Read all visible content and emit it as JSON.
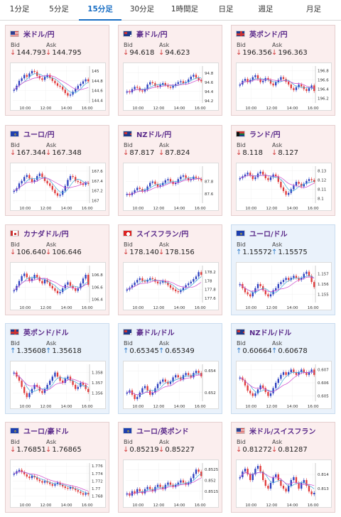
{
  "tabs": [
    {
      "label": "1分足",
      "active": false
    },
    {
      "label": "5分足",
      "active": false
    },
    {
      "label": "15分足",
      "active": true
    },
    {
      "label": "30分足",
      "active": false
    },
    {
      "label": "1時間足",
      "active": false
    },
    {
      "label": "日足",
      "active": false
    },
    {
      "label": "週足",
      "active": false
    },
    {
      "label": "月足",
      "active": false
    }
  ],
  "labels": {
    "bid": "Bid",
    "ask": "Ask"
  },
  "x_ticks": [
    "10:00",
    "12:00",
    "14:00",
    "16:00"
  ],
  "colors": {
    "up": "#2b3fbf",
    "down": "#e03a3a",
    "ma": "#cc44cc",
    "ma2": "#3aa8d8",
    "card_red": "#fbeeee",
    "card_blue": "#eaf2fb"
  },
  "pairs": [
    {
      "name": "米ドル/円",
      "flag": "us-flag-icon",
      "bid": "144.793",
      "ask": "144.795",
      "dir": "down",
      "theme": "red",
      "yticks": [
        "145",
        "144.8",
        "144.6",
        "144.4"
      ],
      "ylim": [
        144.35,
        145.1
      ],
      "series": [
        144.62,
        144.7,
        144.8,
        144.85,
        144.92,
        144.88,
        144.95,
        145.0,
        144.98,
        144.9,
        144.85,
        144.82,
        144.88,
        144.92,
        144.86,
        144.8,
        144.75,
        144.7,
        144.68,
        144.62,
        144.55,
        144.5,
        144.52,
        144.58,
        144.64,
        144.7,
        144.74,
        144.79,
        144.83,
        144.79
      ]
    },
    {
      "name": "豪ドル/円",
      "flag": "au-flag-icon",
      "bid": "94.618",
      "ask": "94.623",
      "dir": "down",
      "theme": "red",
      "yticks": [
        "94.8",
        "94.6",
        "94.4",
        "94.2"
      ],
      "ylim": [
        94.15,
        94.95
      ],
      "series": [
        94.4,
        94.38,
        94.45,
        94.5,
        94.48,
        94.42,
        94.4,
        94.45,
        94.55,
        94.6,
        94.58,
        94.52,
        94.5,
        94.55,
        94.58,
        94.54,
        94.5,
        94.48,
        94.52,
        94.56,
        94.6,
        94.62,
        94.58,
        94.6,
        94.66,
        94.72,
        94.76,
        94.7,
        94.65,
        94.62
      ]
    },
    {
      "name": "英ポンド/円",
      "flag": "gb-flag-icon",
      "bid": "196.356",
      "ask": "196.363",
      "dir": "down",
      "theme": "red",
      "yticks": [
        "196.8",
        "196.6",
        "196.4",
        "196.2"
      ],
      "ylim": [
        196.1,
        196.9
      ],
      "series": [
        196.5,
        196.58,
        196.62,
        196.55,
        196.6,
        196.66,
        196.7,
        196.62,
        196.55,
        196.58,
        196.64,
        196.6,
        196.52,
        196.48,
        196.55,
        196.6,
        196.66,
        196.62,
        196.56,
        196.5,
        196.42,
        196.38,
        196.44,
        196.5,
        196.46,
        196.4,
        196.36,
        196.42,
        196.48,
        196.36
      ]
    },
    {
      "name": "ユーロ/円",
      "flag": "eu-flag-icon",
      "bid": "167.344",
      "ask": "167.348",
      "dir": "down",
      "theme": "red",
      "yticks": [
        "167.6",
        "167.4",
        "167.2",
        "167"
      ],
      "ylim": [
        166.95,
        167.7
      ],
      "series": [
        167.2,
        167.25,
        167.35,
        167.4,
        167.48,
        167.52,
        167.45,
        167.38,
        167.42,
        167.5,
        167.55,
        167.48,
        167.4,
        167.35,
        167.3,
        167.22,
        167.15,
        167.1,
        167.12,
        167.2,
        167.3,
        167.42,
        167.5,
        167.48,
        167.4,
        167.38,
        167.35,
        167.32,
        167.36,
        167.34
      ]
    },
    {
      "name": "NZドル/円",
      "flag": "nz-flag-icon",
      "bid": "87.817",
      "ask": "87.824",
      "dir": "down",
      "theme": "red",
      "yticks": [
        "87.8",
        "87.6"
      ],
      "ylim": [
        87.45,
        88.05
      ],
      "series": [
        87.6,
        87.58,
        87.62,
        87.66,
        87.7,
        87.68,
        87.64,
        87.66,
        87.72,
        87.78,
        87.8,
        87.76,
        87.72,
        87.74,
        87.78,
        87.82,
        87.84,
        87.8,
        87.76,
        87.78,
        87.84,
        87.88,
        87.9,
        87.86,
        87.82,
        87.84,
        87.88,
        87.86,
        87.84,
        87.82
      ]
    },
    {
      "name": "ランド/円",
      "flag": "za-flag-icon",
      "bid": "8.118",
      "ask": "8.127",
      "dir": "down",
      "theme": "red",
      "yticks": [
        "8.13",
        "8.12",
        "8.11",
        "8.1"
      ],
      "ylim": [
        8.095,
        8.135
      ],
      "series": [
        8.122,
        8.124,
        8.126,
        8.128,
        8.125,
        8.121,
        8.123,
        8.127,
        8.129,
        8.126,
        8.122,
        8.12,
        8.123,
        8.126,
        8.124,
        8.118,
        8.112,
        8.108,
        8.104,
        8.106,
        8.11,
        8.114,
        8.118,
        8.116,
        8.113,
        8.116,
        8.119,
        8.121,
        8.12,
        8.118
      ]
    },
    {
      "name": "カナダドル/円",
      "flag": "ca-flag-icon",
      "bid": "106.640",
      "ask": "106.646",
      "dir": "down",
      "theme": "red",
      "yticks": [
        "106.8",
        "106.6",
        "106.4"
      ],
      "ylim": [
        106.35,
        106.95
      ],
      "series": [
        106.55,
        106.62,
        106.7,
        106.78,
        106.82,
        106.76,
        106.7,
        106.74,
        106.8,
        106.76,
        106.7,
        106.66,
        106.72,
        106.68,
        106.62,
        106.58,
        106.54,
        106.5,
        106.52,
        106.58,
        106.64,
        106.68,
        106.62,
        106.58,
        106.54,
        106.58,
        106.66,
        106.74,
        106.8,
        106.64
      ]
    },
    {
      "name": "スイスフラン/円",
      "flag": "ch-flag-icon",
      "bid": "178.140",
      "ask": "178.156",
      "dir": "down",
      "theme": "red",
      "yticks": [
        "178.2",
        "178",
        "177.8",
        "177.6"
      ],
      "ylim": [
        177.5,
        178.35
      ],
      "series": [
        177.8,
        177.84,
        177.9,
        177.96,
        178.02,
        178.06,
        178.0,
        177.98,
        178.02,
        178.06,
        178.04,
        177.98,
        177.94,
        177.96,
        178.0,
        177.96,
        177.9,
        177.84,
        177.8,
        177.76,
        177.74,
        177.78,
        177.84,
        177.9,
        177.94,
        177.98,
        178.04,
        178.1,
        178.2,
        178.14
      ]
    },
    {
      "name": "ユーロ/ドル",
      "flag": "eu-us-flag-icon",
      "bid": "1.15572",
      "ask": "1.15575",
      "dir": "up",
      "theme": "blue",
      "yticks": [
        "1.157",
        "1.156",
        "1.155"
      ],
      "ylim": [
        1.1542,
        1.1578
      ],
      "series": [
        1.156,
        1.1556,
        1.1552,
        1.155,
        1.1548,
        1.1552,
        1.1556,
        1.156,
        1.1558,
        1.1554,
        1.155,
        1.1548,
        1.155,
        1.1554,
        1.1556,
        1.156,
        1.1562,
        1.1564,
        1.1566,
        1.1564,
        1.1566,
        1.1568,
        1.1566,
        1.1564,
        1.1566,
        1.157,
        1.1572,
        1.1568,
        1.1562,
        1.1557
      ]
    },
    {
      "name": "英ポンド/ドル",
      "flag": "gb-us-flag-icon",
      "bid": "1.35608",
      "ask": "1.35618",
      "dir": "up",
      "theme": "blue",
      "yticks": [
        "1.358",
        "1.357",
        "1.356"
      ],
      "ylim": [
        1.3552,
        1.3588
      ],
      "series": [
        1.358,
        1.3576,
        1.3572,
        1.3566,
        1.356,
        1.3556,
        1.356,
        1.3564,
        1.3568,
        1.3566,
        1.3562,
        1.356,
        1.3564,
        1.3568,
        1.3572,
        1.3576,
        1.358,
        1.3576,
        1.3572,
        1.357,
        1.3574,
        1.3576,
        1.3572,
        1.3568,
        1.3564,
        1.3566,
        1.357,
        1.3568,
        1.3564,
        1.3561
      ]
    },
    {
      "name": "豪ドル/ドル",
      "flag": "au-us-flag-icon",
      "bid": "0.65345",
      "ask": "0.65349",
      "dir": "up",
      "theme": "blue",
      "yticks": [
        "0.654",
        "0.652"
      ],
      "ylim": [
        0.6512,
        0.6546
      ],
      "series": [
        0.652,
        0.6522,
        0.6518,
        0.6514,
        0.6516,
        0.652,
        0.6524,
        0.6526,
        0.6522,
        0.6518,
        0.652,
        0.6524,
        0.6528,
        0.653,
        0.6532,
        0.653,
        0.6528,
        0.653,
        0.6534,
        0.6536,
        0.6534,
        0.6532,
        0.6536,
        0.6538,
        0.6536,
        0.6534,
        0.6538,
        0.654,
        0.6538,
        0.6535
      ]
    },
    {
      "name": "NZドル/ドル",
      "flag": "nz-us-flag-icon",
      "bid": "0.60664",
      "ask": "0.60678",
      "dir": "up",
      "theme": "blue",
      "yticks": [
        "0.607",
        "0.606",
        "0.605"
      ],
      "ylim": [
        0.6046,
        0.6074
      ],
      "series": [
        0.6064,
        0.6062,
        0.6058,
        0.6054,
        0.6052,
        0.605,
        0.6052,
        0.6055,
        0.6058,
        0.6056,
        0.6053,
        0.605,
        0.6052,
        0.6056,
        0.606,
        0.6063,
        0.6066,
        0.6068,
        0.6066,
        0.6068,
        0.607,
        0.6068,
        0.6066,
        0.6068,
        0.607,
        0.6068,
        0.6066,
        0.6068,
        0.607,
        0.6066
      ]
    },
    {
      "name": "ユーロ/豪ドル",
      "flag": "eu-au-flag-icon",
      "bid": "1.76851",
      "ask": "1.76865",
      "dir": "down",
      "theme": "red",
      "yticks": [
        "1.776",
        "1.774",
        "1.772",
        "1.77",
        "1.768"
      ],
      "ylim": [
        1.767,
        1.7768
      ],
      "series": [
        1.774,
        1.7746,
        1.775,
        1.7744,
        1.7738,
        1.7732,
        1.7728,
        1.7734,
        1.773,
        1.7724,
        1.772,
        1.7716,
        1.772,
        1.7716,
        1.7712,
        1.7708,
        1.7712,
        1.7716,
        1.771,
        1.7706,
        1.7702,
        1.77,
        1.7704,
        1.77,
        1.7696,
        1.7692,
        1.7688,
        1.7684,
        1.7688,
        1.7685
      ]
    },
    {
      "name": "ユーロ/英ポンド",
      "flag": "eu-gb-flag-icon",
      "bid": "0.85219",
      "ask": "0.85227",
      "dir": "down",
      "theme": "red",
      "yticks": [
        "0.8525",
        "0.852",
        "0.8515"
      ],
      "ylim": [
        0.8511,
        0.8528
      ],
      "series": [
        0.8514,
        0.8513,
        0.8515,
        0.8514,
        0.8516,
        0.8515,
        0.8514,
        0.8516,
        0.8517,
        0.8516,
        0.8515,
        0.8517,
        0.8518,
        0.8517,
        0.8516,
        0.8518,
        0.8519,
        0.8518,
        0.8517,
        0.8518,
        0.8519,
        0.852,
        0.8519,
        0.8518,
        0.8519,
        0.8521,
        0.8523,
        0.8525,
        0.8524,
        0.8522
      ]
    },
    {
      "name": "米ドル/スイスフラン",
      "flag": "us-ch-flag-icon",
      "bid": "0.81272",
      "ask": "0.81287",
      "dir": "down",
      "theme": "red",
      "yticks": [
        "0.814",
        "0.813"
      ],
      "ylim": [
        0.8122,
        0.8148
      ],
      "series": [
        0.8138,
        0.8142,
        0.8144,
        0.814,
        0.8136,
        0.814,
        0.8144,
        0.8146,
        0.8142,
        0.8136,
        0.8132,
        0.813,
        0.8134,
        0.8138,
        0.814,
        0.8136,
        0.8132,
        0.813,
        0.8128,
        0.8132,
        0.8136,
        0.8138,
        0.8134,
        0.813,
        0.8134,
        0.8136,
        0.8132,
        0.8128,
        0.8126,
        0.8127
      ]
    }
  ]
}
